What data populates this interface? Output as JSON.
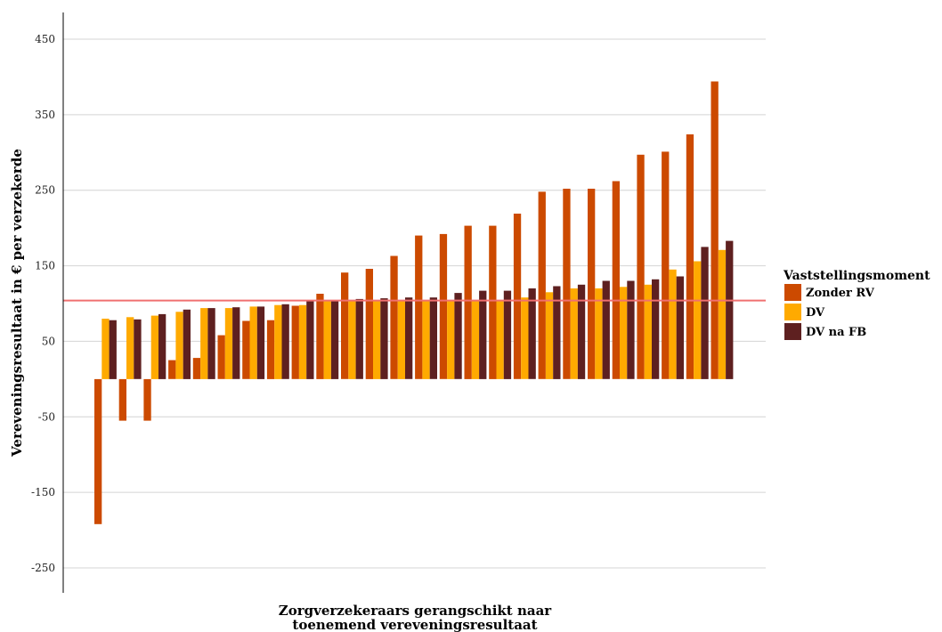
{
  "chart_data": {
    "type": "bar",
    "title": "",
    "xlabel_lines": [
      "Zorgverzekeraars gerangschikt naar",
      "toenemend vereveningsresultaat"
    ],
    "ylabel": "Vereveningsresultaat in  €  per verzekerde",
    "ylim": [
      -290,
      500
    ],
    "yticks": [
      450,
      350,
      250,
      150,
      50,
      -50,
      -150,
      -250
    ],
    "grid": true,
    "reference_line": 104,
    "reference_line_color": "#f07070",
    "legend": {
      "title": "Vaststellingsmoment",
      "position": "right",
      "entries": [
        "Zonder RV",
        "DV",
        "DV na FB"
      ]
    },
    "series": [
      {
        "name": "Zonder RV",
        "color": "#cc4a00",
        "values": [
          -192,
          -55,
          -55,
          25,
          28,
          58,
          77,
          78,
          97,
          113,
          141,
          146,
          163,
          190,
          192,
          203,
          203,
          219,
          248,
          252,
          252,
          262,
          297,
          301,
          324,
          394
        ]
      },
      {
        "name": "DV",
        "color": "#ffaa00",
        "values": [
          80,
          82,
          84,
          89,
          94,
          94,
          96,
          98,
          98,
          103,
          104,
          104,
          104,
          104,
          104,
          104,
          104,
          108,
          115,
          120,
          120,
          122,
          125,
          145,
          156,
          171
        ]
      },
      {
        "name": "DV na FB",
        "color": "#5e2020",
        "values": [
          78,
          79,
          86,
          92,
          94,
          95,
          96,
          99,
          104,
          104,
          106,
          107,
          108,
          108,
          114,
          117,
          117,
          120,
          123,
          125,
          130,
          130,
          132,
          136,
          175,
          183
        ]
      }
    ]
  }
}
